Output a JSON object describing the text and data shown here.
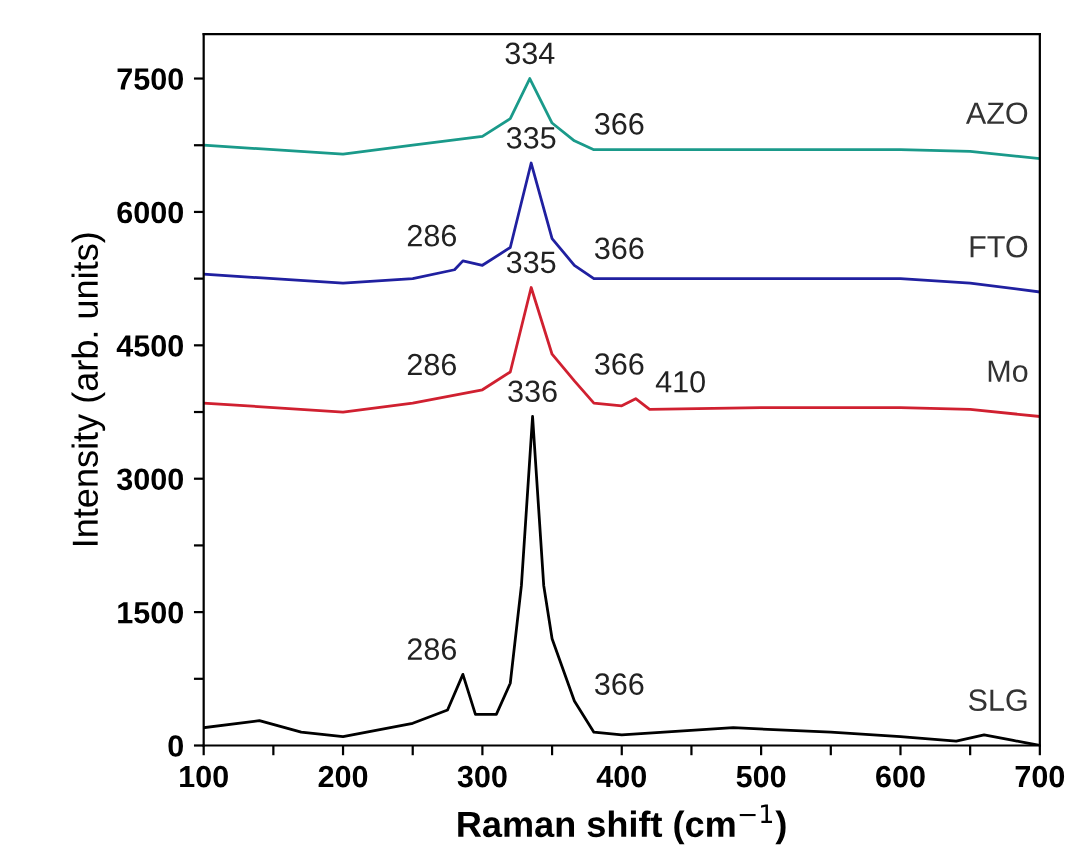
{
  "chart_data": {
    "type": "line",
    "xlabel": "Raman shift (cm$^{−1}$)",
    "ylabel": "Intensity (arb. units)",
    "xlim": [
      100,
      700
    ],
    "ylim": [
      0,
      8000
    ],
    "xticks": [
      100,
      {
        "value": 150,
        "label": null
      },
      200,
      {
        "value": 250,
        "label": null
      },
      300,
      {
        "value": 350,
        "label": null
      },
      400,
      {
        "value": 450,
        "label": null
      },
      500,
      {
        "value": 550,
        "label": null
      },
      600,
      {
        "value": 650,
        "label": null
      },
      700
    ],
    "yticks": [
      0,
      {
        "value": 750,
        "label": null
      },
      1500,
      {
        "value": 2250,
        "label": null
      },
      3000,
      {
        "value": 3750,
        "label": null
      },
      4500,
      {
        "value": 5250,
        "label": null
      },
      6000,
      {
        "value": 6750,
        "label": null
      },
      7500
    ],
    "grid": false,
    "legend": false,
    "marker": "none",
    "line_style": "solid",
    "series": [
      {
        "name": "AZO",
        "color": "#1a9a8a",
        "x": [
          100,
          150,
          200,
          250,
          300,
          320,
          334,
          350,
          366,
          380,
          450,
          500,
          600,
          650,
          700
        ],
        "values": [
          6750,
          6700,
          6650,
          6750,
          6850,
          7050,
          7500,
          7000,
          6800,
          6700,
          6700,
          6700,
          6700,
          6680,
          6600
        ]
      },
      {
        "name": "FTO",
        "color": "#2020a0",
        "x": [
          100,
          150,
          200,
          250,
          280,
          286,
          300,
          320,
          335,
          350,
          366,
          380,
          450,
          500,
          600,
          650,
          700
        ],
        "values": [
          5300,
          5250,
          5200,
          5250,
          5350,
          5450,
          5400,
          5600,
          6550,
          5700,
          5400,
          5250,
          5250,
          5250,
          5250,
          5200,
          5100
        ]
      },
      {
        "name": "Mo",
        "color": "#d02030",
        "x": [
          100,
          150,
          200,
          250,
          300,
          320,
          335,
          350,
          366,
          380,
          400,
          410,
          420,
          500,
          600,
          650,
          700
        ],
        "values": [
          3850,
          3800,
          3750,
          3850,
          4000,
          4200,
          5150,
          4400,
          4100,
          3850,
          3820,
          3900,
          3780,
          3800,
          3800,
          3780,
          3700
        ]
      },
      {
        "name": "SLG",
        "color": "#000000",
        "x": [
          100,
          140,
          170,
          200,
          250,
          275,
          286,
          295,
          310,
          320,
          328,
          336,
          344,
          350,
          366,
          380,
          400,
          480,
          550,
          600,
          640,
          660,
          680,
          700
        ],
        "values": [
          200,
          280,
          150,
          100,
          250,
          400,
          800,
          350,
          350,
          700,
          1800,
          3700,
          1800,
          1200,
          500,
          150,
          120,
          200,
          150,
          100,
          50,
          120,
          60,
          0
        ]
      }
    ],
    "annotations": [
      {
        "text": "334",
        "x": 334,
        "y": 7500
      },
      {
        "text": "366",
        "x": 366,
        "y": 6800
      },
      {
        "text": "335",
        "x": 335,
        "y": 6550
      },
      {
        "text": "286",
        "x": 286,
        "y": 5450
      },
      {
        "text": "366",
        "x": 366,
        "y": 5400
      },
      {
        "text": "335",
        "x": 335,
        "y": 5150
      },
      {
        "text": "286",
        "x": 286,
        "y": 4000
      },
      {
        "text": "366",
        "x": 366,
        "y": 4100
      },
      {
        "text": "410",
        "x": 410,
        "y": 3900
      },
      {
        "text": "336",
        "x": 336,
        "y": 3700
      },
      {
        "text": "286",
        "x": 286,
        "y": 800
      },
      {
        "text": "366",
        "x": 366,
        "y": 500
      }
    ]
  }
}
